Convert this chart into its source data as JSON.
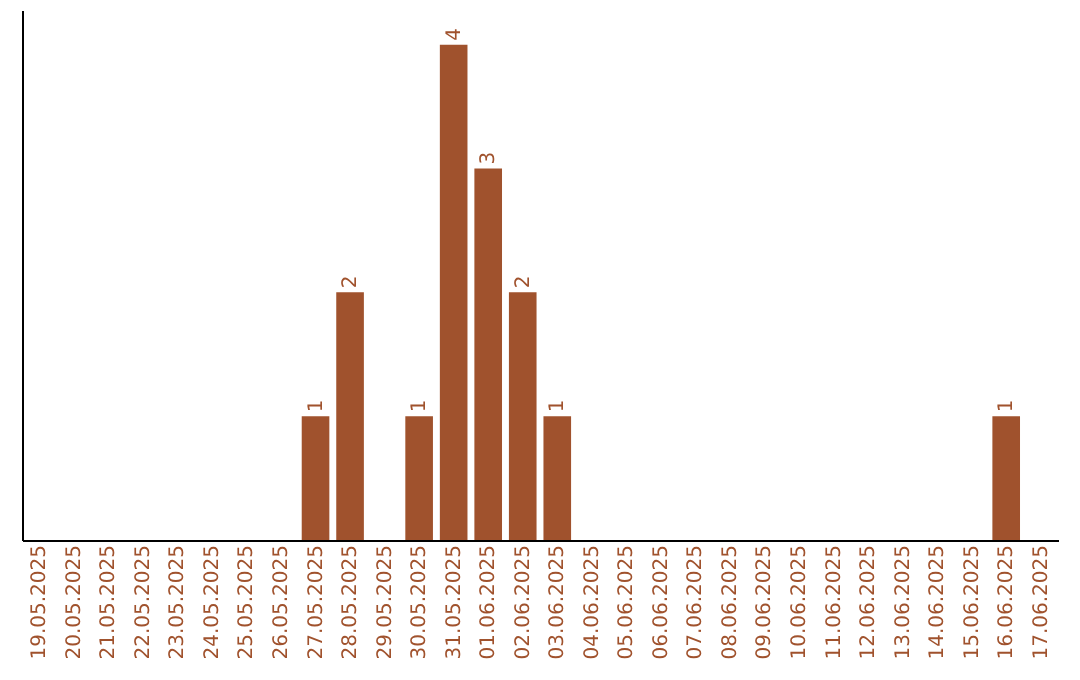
{
  "chart_data": {
    "type": "bar",
    "categories": [
      "19.05.2025",
      "20.05.2025",
      "21.05.2025",
      "22.05.2025",
      "23.05.2025",
      "24.05.2025",
      "25.05.2025",
      "26.05.2025",
      "27.05.2025",
      "28.05.2025",
      "29.05.2025",
      "30.05.2025",
      "31.05.2025",
      "01.06.2025",
      "02.06.2025",
      "03.06.2025",
      "04.06.2025",
      "05.06.2025",
      "06.06.2025",
      "07.06.2025",
      "08.06.2025",
      "09.06.2025",
      "10.06.2025",
      "11.06.2025",
      "12.06.2025",
      "13.06.2025",
      "14.06.2025",
      "15.06.2025",
      "16.06.2025",
      "17.06.2025"
    ],
    "values": [
      0,
      0,
      0,
      0,
      0,
      0,
      0,
      0,
      1,
      2,
      0,
      1,
      4,
      3,
      2,
      1,
      0,
      0,
      0,
      0,
      0,
      0,
      0,
      0,
      0,
      0,
      0,
      0,
      1,
      0
    ],
    "value_labels": [
      null,
      null,
      null,
      null,
      null,
      null,
      null,
      null,
      "1",
      "2",
      null,
      "1",
      "4",
      "3",
      "2",
      "1",
      null,
      null,
      null,
      null,
      null,
      null,
      null,
      null,
      null,
      null,
      null,
      null,
      "1",
      null
    ],
    "color": "#a0522d",
    "grid": false,
    "tick_labels": "x"
  }
}
